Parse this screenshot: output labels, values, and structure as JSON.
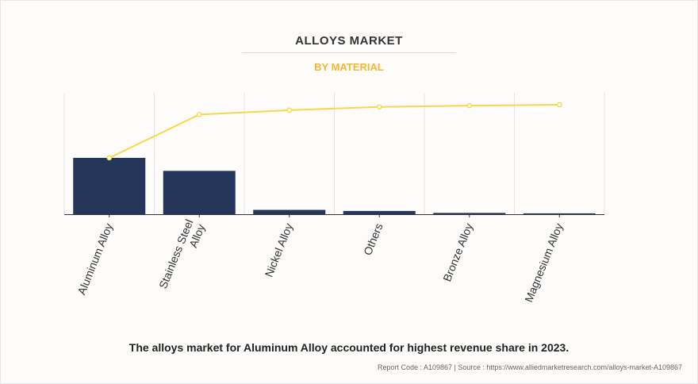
{
  "header": {
    "title": "ALLOYS MARKET",
    "subtitle": "BY MATERIAL"
  },
  "footer": {
    "caption": "The alloys market for Aluminum Alloy accounted for highest revenue share in 2023.",
    "source": "Report Code : A109867  |  Source : https://www.alliedmarketresearch.com/alloys-market-A109867"
  },
  "colors": {
    "bar": "#243659",
    "line": "#f7d84a",
    "subtitle": "#f5b632",
    "grid": "#e4e4e4"
  },
  "chart_data": {
    "type": "bar",
    "title": "ALLOYS MARKET",
    "subtitle": "BY MATERIAL",
    "categories": [
      "Aluminum Alloy",
      "Stainless Steel Alloy",
      "Nickel Alloy",
      "Others",
      "Bronze Alloy",
      "Magnesium Alloy"
    ],
    "category_lines": [
      [
        "Aluminum Alloy"
      ],
      [
        "Stainless Steel",
        "Alloy"
      ],
      [
        "Nickel Alloy"
      ],
      [
        "Others"
      ],
      [
        "Bronze Alloy"
      ],
      [
        "Magnesium Alloy"
      ]
    ],
    "series": [
      {
        "type": "bar",
        "values": [
          52.0,
          40.0,
          4.0,
          3.0,
          1.2,
          0.8
        ]
      },
      {
        "type": "line",
        "values": [
          52.0,
          92.0,
          96.0,
          99.0,
          100.2,
          101.0
        ]
      }
    ],
    "ylim": [
      0,
      112
    ],
    "grid": "vertical",
    "axis_labels_shown": false,
    "legend": "none"
  }
}
